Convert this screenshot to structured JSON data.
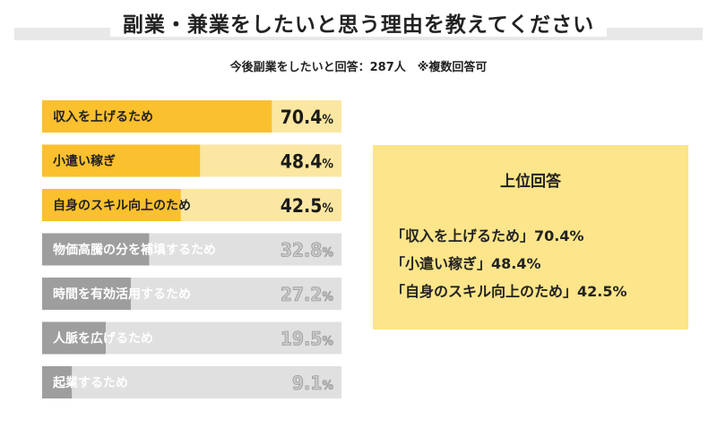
{
  "title": "副業・兼業をしたいと思う理由を教えてください",
  "subtitle": "今後副業をしたいと回答：287人　※複数回答可",
  "chart_data": {
    "type": "bar",
    "orientation": "horizontal",
    "categories": [
      "収入を上げるため",
      "小遣い稼ぎ",
      "自身のスキル向上のため",
      "物価高騰の分を補填するため",
      "時間を有効活用するため",
      "人脈を広げるため",
      "起業するため"
    ],
    "values": [
      70.4,
      48.4,
      42.5,
      32.8,
      27.2,
      19.5,
      9.1
    ],
    "value_labels": [
      "70.4%",
      "48.4%",
      "42.5%",
      "32.8%",
      "27.2%",
      "19.5%",
      "9.1%"
    ],
    "unit": "%",
    "xlim": [
      0,
      100
    ],
    "highlight_top_n": 3,
    "colors": {
      "highlight_bar": "#fbc02d",
      "highlight_track": "#fbe7a1",
      "normal_bar": "#9e9e9e",
      "normal_track": "#e0e0e0",
      "normal_value_label": "#c8c8c8"
    }
  },
  "summary": {
    "heading": "上位回答",
    "items": [
      "「収入を上げるため」70.4%",
      "「小遣い稼ぎ」48.4%",
      "「自身のスキル向上のため」42.5%"
    ],
    "background": "#fce58a"
  }
}
